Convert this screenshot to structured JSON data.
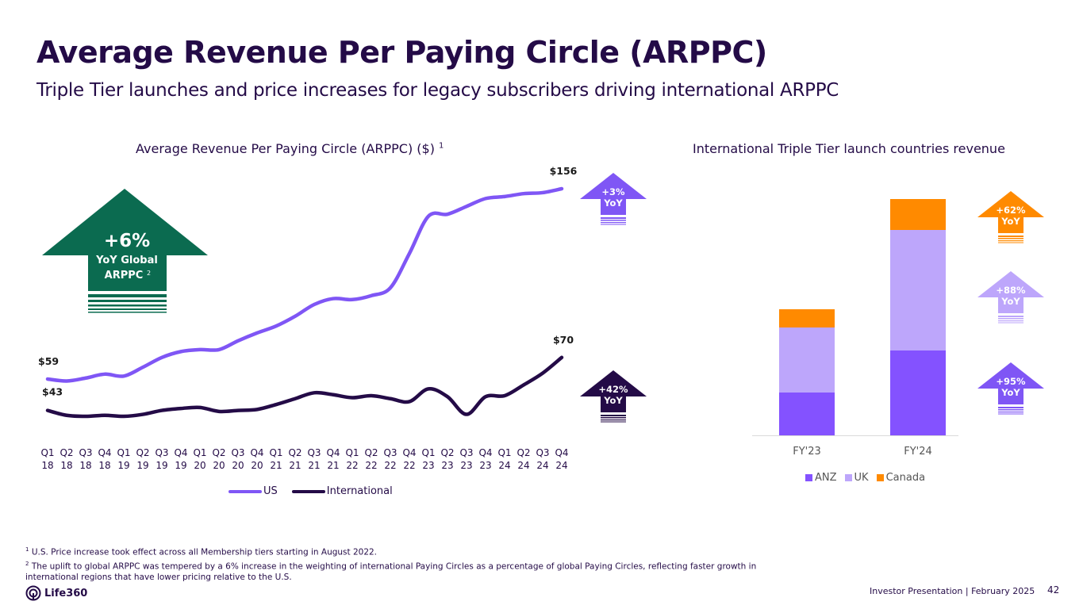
{
  "page": {
    "title": "Average Revenue Per Paying Circle (ARPPC)",
    "subtitle": "Triple Tier launches and price increases for legacy subscribers driving international ARPPC",
    "footer": "Investor Presentation  | February 2025",
    "page_number": "42",
    "logo_text": "Life360",
    "footnotes": [
      {
        "marker": "1",
        "text": "U.S. Price increase took effect across all Membership tiers starting in August 2022."
      },
      {
        "marker": "2",
        "text": "The uplift to global ARPPC was tempered by a 6% increase in the weighting of international Paying Circles as a percentage of global Paying Circles, reflecting faster growth in international regions that have lower pricing relative to the U.S."
      }
    ]
  },
  "callouts": {
    "global": {
      "value": "+6%",
      "line1": "YoY Global",
      "line2": "ARPPC",
      "sup": "2",
      "color": "#0b6b50"
    },
    "us": {
      "value": "+3%",
      "label": "YoY",
      "color": "#7f56f5"
    },
    "international": {
      "value": "+42%",
      "label": "YoY",
      "color": "#240b47"
    },
    "canada": {
      "value": "+62%",
      "label": "YoY",
      "color": "#ff8a00"
    },
    "uk": {
      "value": "+88%",
      "label": "YoY",
      "color": "#bda6fb"
    },
    "anz": {
      "value": "+95%",
      "label": "YoY",
      "color": "#7f56f5"
    }
  },
  "chart_data": [
    {
      "type": "line",
      "title": "Average Revenue Per Paying Circle (ARPPC) ($)",
      "title_sup": "1",
      "xlabel": "",
      "ylabel": "",
      "ylim": [
        20,
        180
      ],
      "grid": false,
      "legend": "bottom",
      "categories": [
        "Q1 18",
        "Q2 18",
        "Q3 18",
        "Q4 18",
        "Q1 19",
        "Q2 19",
        "Q3 19",
        "Q4 19",
        "Q1 20",
        "Q2 20",
        "Q3 20",
        "Q4 20",
        "Q1 21",
        "Q2 21",
        "Q3 21",
        "Q4 21",
        "Q1 22",
        "Q2 22",
        "Q3 22",
        "Q4 22",
        "Q1 23",
        "Q2 23",
        "Q3 23",
        "Q4 23",
        "Q1 24",
        "Q2 24",
        "Q3 24",
        "Q4 24"
      ],
      "tick_top": [
        "Q1",
        "Q2",
        "Q3",
        "Q4",
        "Q1",
        "Q2",
        "Q3",
        "Q4",
        "Q1",
        "Q2",
        "Q3",
        "Q4",
        "Q1",
        "Q2",
        "Q3",
        "Q4",
        "Q1",
        "Q2",
        "Q3",
        "Q4",
        "Q1",
        "Q2",
        "Q3",
        "Q4",
        "Q1",
        "Q2",
        "Q3",
        "Q4"
      ],
      "tick_bottom": [
        "18",
        "18",
        "18",
        "18",
        "19",
        "19",
        "19",
        "19",
        "20",
        "20",
        "20",
        "20",
        "21",
        "21",
        "21",
        "21",
        "22",
        "22",
        "22",
        "22",
        "23",
        "23",
        "23",
        "23",
        "24",
        "24",
        "24",
        "24"
      ],
      "series": [
        {
          "name": "US",
          "color": "#7f56f5",
          "start_label": "$59",
          "end_label": "$156",
          "values": [
            59,
            58,
            59.5,
            61.5,
            60.5,
            65,
            70,
            73,
            74,
            74,
            78.5,
            82.5,
            86,
            91,
            97,
            100,
            99.5,
            101.5,
            105.5,
            123,
            142,
            143,
            147,
            151,
            152,
            153.5,
            154,
            156
          ]
        },
        {
          "name": "International",
          "color": "#240b47",
          "start_label": "$43",
          "end_label": "$70",
          "values": [
            43,
            40.5,
            40,
            40.5,
            40,
            41,
            43,
            44,
            44.5,
            42.5,
            43,
            43.5,
            46,
            49,
            52,
            51,
            49.5,
            50.5,
            49,
            47.5,
            54,
            50,
            41,
            50,
            50.5,
            56,
            62,
            70
          ]
        }
      ]
    },
    {
      "type": "bar",
      "stacked": true,
      "title": "International Triple Tier launch countries revenue",
      "xlabel": "",
      "ylabel": "",
      "grid": false,
      "legend": "bottom",
      "categories": [
        "FY'23",
        "FY'24"
      ],
      "series": [
        {
          "name": "ANZ",
          "color": "#8452ff",
          "values": [
            54,
            107
          ]
        },
        {
          "name": "UK",
          "color": "#bda6fb",
          "values": [
            82,
            152
          ]
        },
        {
          "name": "Canada",
          "color": "#ff8a00",
          "values": [
            23,
            39
          ]
        }
      ]
    }
  ]
}
